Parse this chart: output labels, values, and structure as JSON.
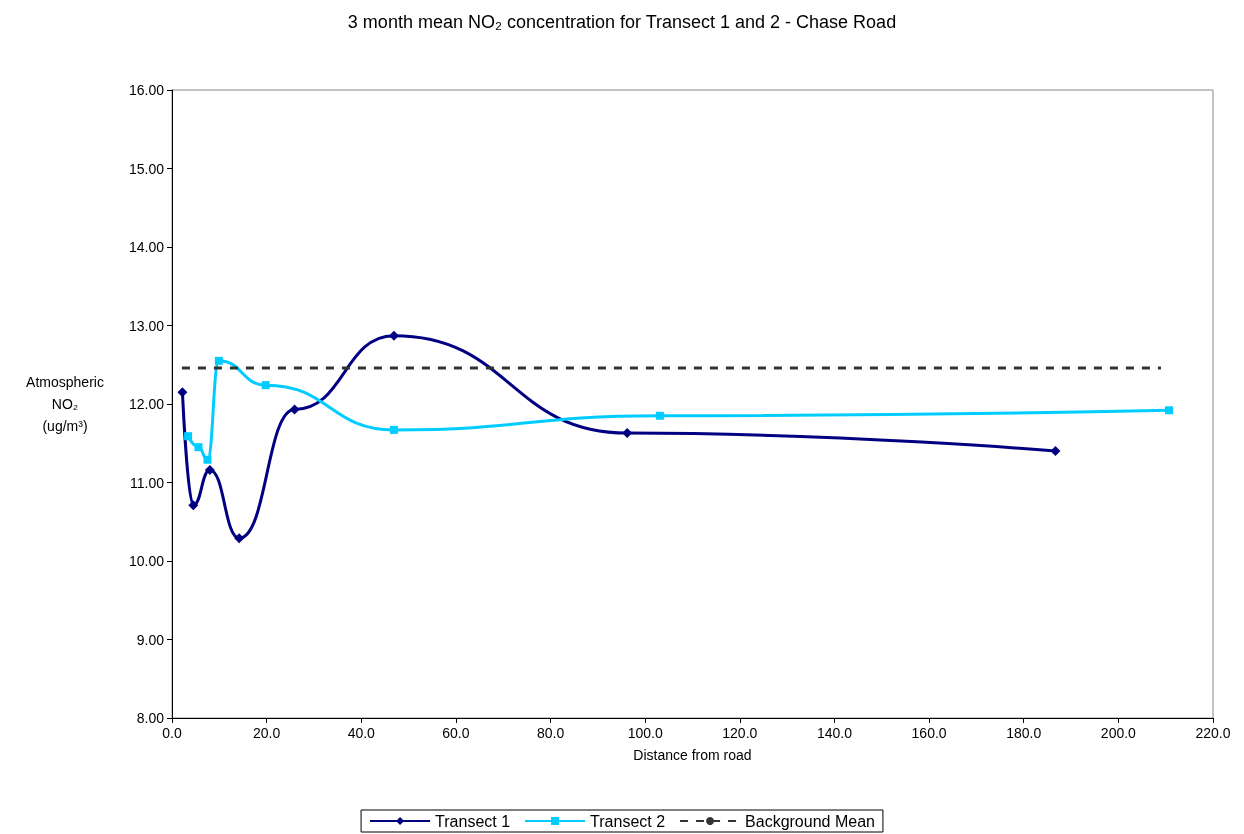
{
  "chart_data": {
    "type": "line",
    "title": "3 month mean NO₂ concentration for Transect 1 and 2 - Chase Road",
    "xlabel": "Distance from road",
    "ylabel": "Atmospheric NO₂ (ug/m³)",
    "xlim": [
      0,
      220
    ],
    "xticks": [
      {
        "value": 0,
        "label": "0.0"
      },
      {
        "value": 20,
        "label": "20.0"
      },
      {
        "value": 40,
        "label": "40.0"
      },
      {
        "value": 60,
        "label": "60.0"
      },
      {
        "value": 80,
        "label": "80.0"
      },
      {
        "value": 100,
        "label": "100.0"
      },
      {
        "value": 120,
        "label": "120.0"
      },
      {
        "value": 140,
        "label": "140.0"
      },
      {
        "value": 160,
        "label": "160.0"
      },
      {
        "value": 180,
        "label": "180.0"
      },
      {
        "value": 200,
        "label": "200.0"
      },
      {
        "value": 220,
        "label": "220.0"
      }
    ],
    "ylim": [
      8,
      16
    ],
    "yticks": [
      {
        "value": 8,
        "label": "8.00"
      },
      {
        "value": 9,
        "label": "9.00"
      },
      {
        "value": 10,
        "label": "10.00"
      },
      {
        "value": 11,
        "label": "11.00"
      },
      {
        "value": 12,
        "label": "12.00"
      },
      {
        "value": 13,
        "label": "13.00"
      },
      {
        "value": 14,
        "label": "14.00"
      },
      {
        "value": 15,
        "label": "15.00"
      },
      {
        "value": 16,
        "label": "16.00"
      }
    ],
    "grid": false,
    "legend": "bottom",
    "series": [
      {
        "name": "Transect 1",
        "color": "#000080",
        "marker": "diamond",
        "x": [
          2.2,
          4.5,
          8.0,
          14.2,
          25.9,
          46.9,
          96.2,
          186.7
        ],
        "values": [
          12.15,
          10.71,
          11.16,
          10.29,
          11.93,
          12.87,
          11.63,
          11.4
        ]
      },
      {
        "name": "Transect 2",
        "color": "#00ccff",
        "marker": "square",
        "x": [
          3.4,
          5.6,
          7.5,
          9.9,
          19.8,
          46.9,
          103.1,
          210.7
        ],
        "values": [
          11.59,
          11.45,
          11.29,
          12.55,
          12.24,
          11.67,
          11.85,
          11.92
        ]
      },
      {
        "name": "Background Mean",
        "color": "#333333",
        "marker": "none",
        "line_style": "dashed",
        "x": [
          2.1,
          209
        ],
        "values": [
          12.46,
          12.46
        ]
      }
    ]
  }
}
